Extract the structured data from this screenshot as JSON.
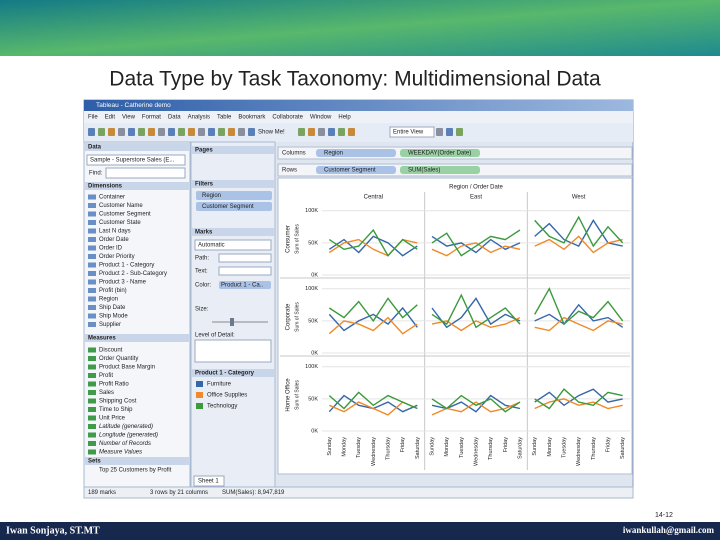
{
  "slide": {
    "title": "Data Type by Task Taxonomy: Multidimensional Data",
    "author": "Iwan Sonjaya, ST.MT",
    "email": "iwankullah@gmail.com",
    "page": "14-12"
  },
  "app": {
    "window_title": "Tableau - Catherine demo",
    "menu": [
      "File",
      "Edit",
      "View",
      "Format",
      "Data",
      "Analysis",
      "Table",
      "Bookmark",
      "Collaborate",
      "Window",
      "Help"
    ],
    "toolbar": [
      "Show Me!",
      "Entire View"
    ],
    "data_pane": {
      "header": "Data",
      "source": "Sample - Superstore Sales (E...",
      "find": "Find:",
      "dimensions_header": "Dimensions",
      "dimensions": [
        "Container",
        "Customer Name",
        "Customer Segment",
        "Customer State",
        "Last N days",
        "Order Date",
        "Order ID",
        "Order Priority",
        "Product 1 - Category",
        "Product 2 - Sub-Category",
        "Product 3 - Name",
        "Profit (bin)",
        "Region",
        "Ship Date",
        "Ship Mode",
        "Supplier"
      ],
      "measures_header": "Measures",
      "measures": [
        "Discount",
        "Order Quantity",
        "Product Base Margin",
        "Profit",
        "Profit Ratio",
        "Sales",
        "Shipping Cost",
        "Time to Ship",
        "Unit Price",
        "Latitude (generated)",
        "Longitude (generated)",
        "Number of Records",
        "Measure Values"
      ],
      "sets_header": "Sets",
      "sets": [
        "Top 25 Customers by Profit"
      ]
    },
    "pages_header": "Pages",
    "filters_header": "Filters",
    "filters": [
      "Region",
      "Customer Segment"
    ],
    "marks": {
      "header": "Marks",
      "type": "Automatic",
      "path": "Path:",
      "text": "Text:",
      "color": "Color:",
      "color_field": "Product 1 - Ca..",
      "size": "Size:",
      "detail": "Level of Detail:"
    },
    "legend_title": "Product 1 - Category",
    "shelves": {
      "columns_label": "Columns",
      "columns": [
        "Region",
        "WEEKDAY(Order Date)"
      ],
      "rows_label": "Rows",
      "rows": [
        "Customer Segment",
        "SUM(Sales)"
      ]
    },
    "sheet_tab": "Sheet 1",
    "status": [
      "189 marks",
      "3 rows by 21 columns",
      "SUM(Sales): 8,947,819"
    ]
  },
  "chart_data": {
    "type": "line",
    "title": "Region / Order Date",
    "columns": [
      "Central",
      "East",
      "West"
    ],
    "rows": [
      "Consumer",
      "Corporate",
      "Home Office"
    ],
    "y_label": "Sum of Sales",
    "categories": [
      "Sunday",
      "Monday",
      "Tuesday",
      "Wednesday",
      "Thursday",
      "Friday",
      "Saturday"
    ],
    "ylim": [
      0,
      112000
    ],
    "yticks": [
      {
        "value": 0,
        "label": "0K"
      },
      {
        "value": 50000,
        "label": "50K"
      },
      {
        "value": 100000,
        "label": "100K"
      }
    ],
    "grid": true,
    "series": [
      {
        "name": "Furniture",
        "color": "#3567a8"
      },
      {
        "name": "Office Supplies",
        "color": "#f0892a"
      },
      {
        "name": "Technology",
        "color": "#3a9a3c"
      }
    ],
    "panels": [
      [
        [
          [
            40000,
            55000,
            35000,
            60000,
            50000,
            30000,
            45000
          ],
          [
            35000,
            50000,
            55000,
            40000,
            30000,
            55000,
            50000
          ],
          [
            55000,
            40000,
            45000,
            70000,
            30000,
            55000,
            40000
          ]
        ],
        [
          [
            60000,
            45000,
            50000,
            35000,
            55000,
            40000,
            50000
          ],
          [
            40000,
            30000,
            45000,
            50000,
            35000,
            45000,
            40000
          ],
          [
            50000,
            65000,
            30000,
            45000,
            60000,
            55000,
            70000
          ]
        ],
        [
          [
            60000,
            80000,
            55000,
            45000,
            85000,
            50000,
            45000
          ],
          [
            45000,
            55000,
            40000,
            60000,
            35000,
            50000,
            55000
          ],
          [
            85000,
            60000,
            50000,
            90000,
            45000,
            75000,
            50000
          ]
        ]
      ],
      [
        [
          [
            60000,
            35000,
            50000,
            60000,
            45000,
            70000,
            40000
          ],
          [
            30000,
            50000,
            45000,
            35000,
            55000,
            30000,
            45000
          ],
          [
            70000,
            55000,
            80000,
            50000,
            85000,
            55000,
            75000
          ]
        ],
        [
          [
            70000,
            40000,
            55000,
            85000,
            45000,
            60000,
            50000
          ],
          [
            45000,
            50000,
            35000,
            50000,
            40000,
            45000,
            55000
          ],
          [
            60000,
            45000,
            90000,
            40000,
            55000,
            70000,
            45000
          ]
        ],
        [
          [
            50000,
            60000,
            45000,
            75000,
            50000,
            55000,
            40000
          ],
          [
            40000,
            35000,
            55000,
            45000,
            35000,
            50000,
            45000
          ],
          [
            60000,
            100000,
            45000,
            65000,
            55000,
            80000,
            50000
          ]
        ]
      ],
      [
        [
          [
            30000,
            55000,
            40000,
            35000,
            45000,
            30000,
            40000
          ],
          [
            40000,
            30000,
            45000,
            35000,
            25000,
            45000,
            35000
          ],
          [
            55000,
            35000,
            60000,
            40000,
            55000,
            45000,
            35000
          ]
        ],
        [
          [
            40000,
            35000,
            45000,
            30000,
            55000,
            40000,
            35000
          ],
          [
            25000,
            35000,
            30000,
            45000,
            30000,
            35000,
            45000
          ],
          [
            50000,
            35000,
            55000,
            40000,
            50000,
            30000,
            45000
          ]
        ],
        [
          [
            45000,
            60000,
            40000,
            55000,
            65000,
            45000,
            50000
          ],
          [
            35000,
            45000,
            50000,
            40000,
            45000,
            35000,
            40000
          ],
          [
            50000,
            35000,
            65000,
            45000,
            40000,
            60000,
            55000
          ]
        ]
      ]
    ]
  }
}
